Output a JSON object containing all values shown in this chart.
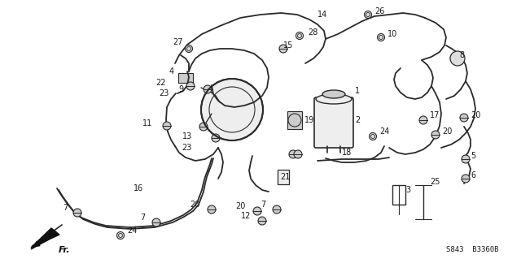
{
  "bg_color": "#ffffff",
  "line_color": "#2a2a2a",
  "text_color": "#1a1a1a",
  "part_number_text": "S843  B3360B",
  "lw": 1.3,
  "clw": 1.0,
  "figsize": [
    6.4,
    3.19
  ],
  "dpi": 100
}
